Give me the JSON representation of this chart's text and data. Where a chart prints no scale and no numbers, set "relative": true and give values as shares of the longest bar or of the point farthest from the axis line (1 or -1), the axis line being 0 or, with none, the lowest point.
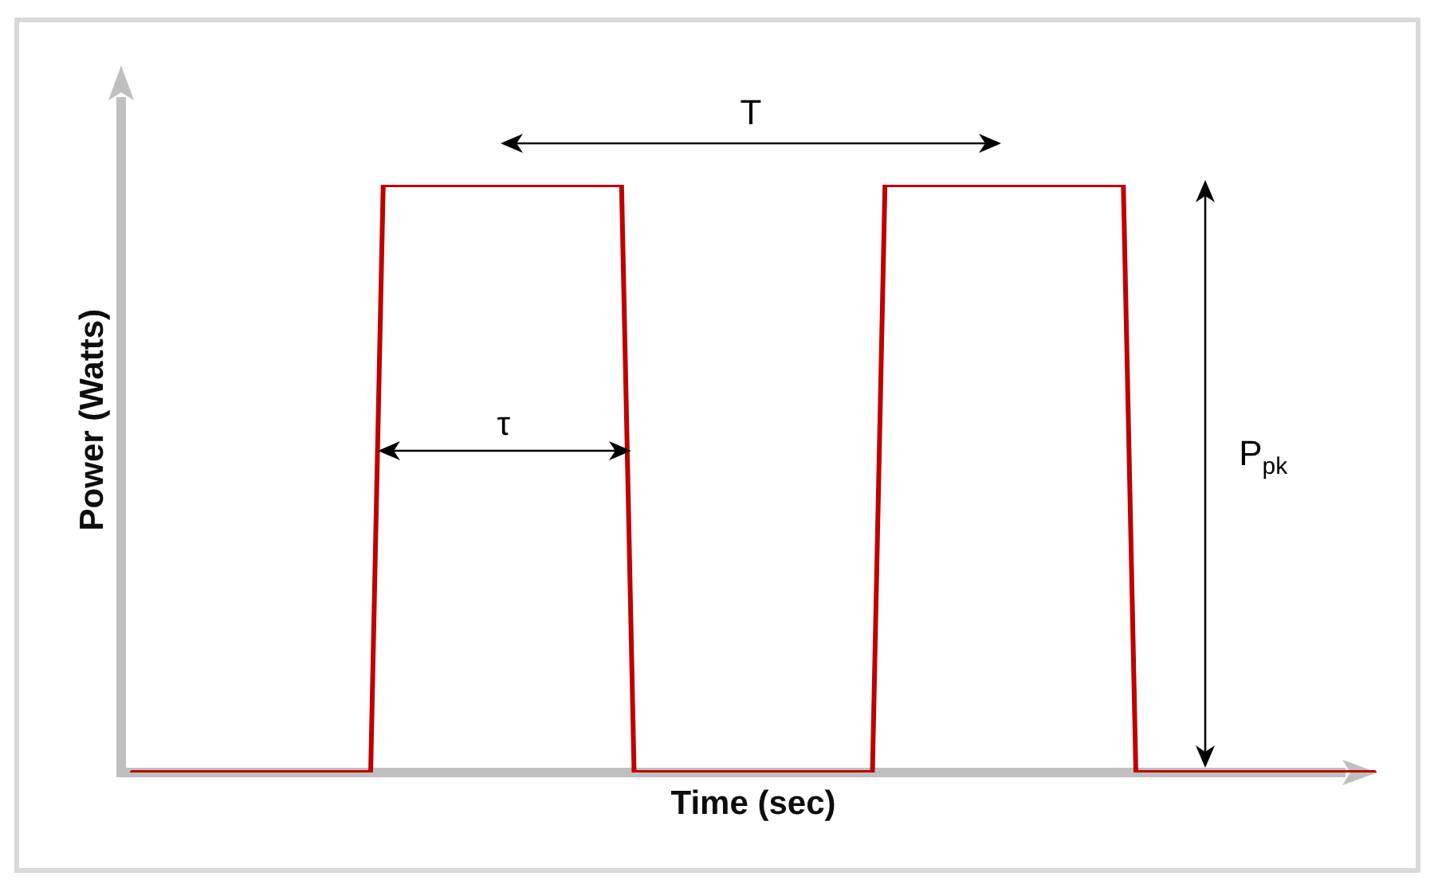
{
  "chart_data": {
    "type": "line",
    "xlabel": "Time (sec)",
    "ylabel": "Power (Watts)",
    "categories": [
      null,
      null,
      null,
      null,
      null,
      null,
      null,
      null,
      null,
      null,
      null,
      null,
      null,
      null,
      null,
      null,
      null,
      null,
      null,
      null,
      null,
      null,
      null,
      null,
      null,
      null,
      null,
      null,
      null,
      null,
      null,
      null,
      null,
      null,
      null,
      null,
      null,
      null,
      null,
      null,
      null,
      null,
      null,
      null,
      null,
      null,
      null,
      null,
      null,
      null,
      null,
      null,
      null,
      null,
      null,
      null,
      null,
      null,
      null,
      null,
      null,
      null,
      null,
      null,
      null,
      null,
      null,
      null,
      null,
      null,
      null,
      null,
      null,
      null,
      null,
      null,
      null,
      null,
      null,
      null,
      null,
      null,
      null,
      null,
      null,
      null,
      null,
      null,
      null,
      null,
      null,
      null,
      null,
      null,
      null,
      null,
      null,
      null,
      null,
      null
    ],
    "series": [
      {
        "color": "#c00000",
        "values": [
          0,
          0,
          0,
          0,
          0,
          0,
          0,
          0,
          0,
          0,
          0,
          0,
          0,
          0,
          0,
          0,
          0,
          0,
          0,
          0,
          1,
          1,
          1,
          1,
          1,
          1,
          1,
          1,
          1,
          1,
          1,
          1,
          1,
          1,
          1,
          1,
          1,
          1,
          1,
          1,
          0,
          0,
          0,
          0,
          0,
          0,
          0,
          0,
          0,
          0,
          0,
          0,
          0,
          0,
          0,
          0,
          0,
          0,
          0,
          0,
          1,
          1,
          1,
          1,
          1,
          1,
          1,
          1,
          1,
          1,
          1,
          1,
          1,
          1,
          1,
          1,
          1,
          1,
          1,
          1,
          0,
          0,
          0,
          0,
          0,
          0,
          0,
          0,
          0,
          0,
          0,
          0,
          0,
          0,
          0,
          0,
          0,
          0,
          0,
          0
        ]
      }
    ],
    "relative": true,
    "grid": false,
    "legend": false,
    "tick_labels": false,
    "marker": "none",
    "line_style": "solid",
    "annotations": [
      "T",
      "τ",
      "P$_{pk}$"
    ]
  }
}
